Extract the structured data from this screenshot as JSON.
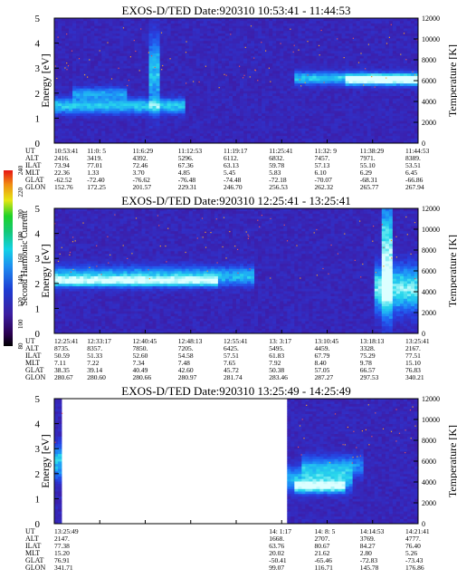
{
  "figure": {
    "colorbar": {
      "label": "Second Harmonic Current",
      "ticks": [
        "80",
        "100",
        "120",
        "140",
        "160",
        "180",
        "200",
        "220",
        "240"
      ]
    },
    "ylabel_left": "Energy [eV]",
    "ylabel_right": "Temperature [K]",
    "row_labels": [
      "UT",
      "ALT",
      "ILAT",
      "MLT",
      "GLAT",
      "GLON"
    ]
  },
  "chart_data": [
    {
      "type": "heatmap",
      "title": "EXOS-D/TED  Date:920310  10:53:41 - 11:44:53",
      "xlabel": "",
      "ylabel": "Energy [eV]",
      "ylabel_right": "Temperature [K]",
      "ylim": [
        0,
        5
      ],
      "ylim_right": [
        0,
        12000
      ],
      "yticks": [
        "0",
        "1",
        "2",
        "3",
        "4",
        "5"
      ],
      "yticks_right": [
        "0",
        "2000",
        "4000",
        "6000",
        "8000",
        "10000",
        "12000"
      ],
      "data_coverage": [
        [
          0.0,
          1.0
        ]
      ],
      "bands": [
        {
          "x0": 0.0,
          "x1": 0.36,
          "center": 1.5,
          "width": 0.55,
          "level": 0.55
        },
        {
          "x0": 0.05,
          "x1": 0.2,
          "center": 2.0,
          "width": 0.45,
          "level": 0.4
        },
        {
          "x0": 0.26,
          "x1": 0.29,
          "center": 2.8,
          "width": 2.6,
          "level": 0.5
        },
        {
          "x0": 0.66,
          "x1": 1.0,
          "center": 2.6,
          "width": 0.45,
          "level": 0.55
        },
        {
          "x0": 0.8,
          "x1": 1.0,
          "center": 2.55,
          "width": 0.35,
          "level": 0.75
        }
      ],
      "ephemeris": {
        "UT": [
          "10:53:41",
          "11:0: 5",
          "11:6:29",
          "11:12:53",
          "11:19:17",
          "11:25:41",
          "11:32: 9",
          "11:38:29",
          "11:44:53"
        ],
        "ALT": [
          "2416.",
          "3419.",
          "4392.",
          "5296.",
          "6112.",
          "6832.",
          "7457.",
          "7971.",
          "8389."
        ],
        "ILAT": [
          "73.94",
          "77.01",
          "72.46",
          "67.36",
          "63.13",
          "59.78",
          "57.13",
          "55.10",
          "53.51"
        ],
        "MLT": [
          "22.36",
          "1.33",
          "3.70",
          "4.85",
          "5.45",
          "5.83",
          "6.10",
          "6.29",
          "6.45"
        ],
        "GLAT": [
          "-62.52",
          "-72.40",
          "-76.62",
          "-76.48",
          "-74.48",
          "-72.18",
          "-70.07",
          "-68.31",
          "-66.86"
        ],
        "GLON": [
          "152.76",
          "172.25",
          "201.57",
          "229.31",
          "246.70",
          "256.53",
          "262.32",
          "265.77",
          "267.94"
        ]
      }
    },
    {
      "type": "heatmap",
      "title": "EXOS-D/TED  Date:920310  12:25:41 - 13:25:41",
      "xlabel": "",
      "ylabel": "Energy [eV]",
      "ylabel_right": "Temperature [K]",
      "ylim": [
        0,
        5
      ],
      "ylim_right": [
        0,
        12000
      ],
      "yticks": [
        "0",
        "1",
        "2",
        "3",
        "4",
        "5"
      ],
      "yticks_right": [
        "0",
        "2000",
        "4000",
        "6000",
        "8000",
        "10000",
        "12000"
      ],
      "data_coverage": [
        [
          0.0,
          1.0
        ]
      ],
      "bands": [
        {
          "x0": 0.0,
          "x1": 0.55,
          "center": 2.3,
          "width": 0.7,
          "level": 0.5
        },
        {
          "x0": 0.0,
          "x1": 0.45,
          "center": 2.1,
          "width": 0.35,
          "level": 0.65
        },
        {
          "x0": 0.88,
          "x1": 1.0,
          "center": 1.8,
          "width": 1.6,
          "level": 0.7
        },
        {
          "x0": 0.9,
          "x1": 0.93,
          "center": 3.0,
          "width": 4.0,
          "level": 0.8
        }
      ],
      "ephemeris": {
        "UT": [
          "12:25:41",
          "12:33:17",
          "12:40:45",
          "12:48:13",
          "12:55:41",
          "13: 3:17",
          "13:10:45",
          "13:18:13",
          "13:25:41"
        ],
        "ALT": [
          "8735.",
          "8357.",
          "7850.",
          "7205.",
          "6425.",
          "5495.",
          "4459.",
          "3328.",
          "2167."
        ],
        "ILAT": [
          "50.59",
          "51.33",
          "52.60",
          "54.58",
          "57.51",
          "61.83",
          "67.79",
          "75.29",
          "77.51"
        ],
        "MLT": [
          "7.11",
          "7.22",
          "7.34",
          "7.48",
          "7.65",
          "7.92",
          "8.40",
          "9.78",
          "15.10"
        ],
        "GLAT": [
          "38.35",
          "39.14",
          "40.49",
          "42.60",
          "45.72",
          "50.38",
          "57.05",
          "66.57",
          "76.83"
        ],
        "GLON": [
          "280.67",
          "280.60",
          "280.66",
          "280.97",
          "281.74",
          "283.46",
          "287.27",
          "297.53",
          "340.21"
        ]
      }
    },
    {
      "type": "heatmap",
      "title": "EXOS-D/TED  Date:920310  13:25:49 - 14:25:49",
      "xlabel": "",
      "ylabel": "Energy [eV]",
      "ylabel_right": "Temperature [K]",
      "ylim": [
        0,
        5
      ],
      "ylim_right": [
        0,
        12000
      ],
      "yticks": [
        "0",
        "1",
        "2",
        "3",
        "4",
        "5"
      ],
      "yticks_right": [
        "0",
        "2000",
        "4000",
        "6000",
        "8000",
        "10000",
        "12000"
      ],
      "data_coverage": [
        [
          0.0,
          0.02
        ],
        [
          0.645,
          1.0
        ]
      ],
      "bands": [
        {
          "x0": 0.0,
          "x1": 0.02,
          "center": 2.5,
          "width": 1.2,
          "level": 0.55
        },
        {
          "x0": 0.645,
          "x1": 0.82,
          "center": 1.8,
          "width": 0.9,
          "level": 0.45
        },
        {
          "x0": 0.66,
          "x1": 0.8,
          "center": 1.5,
          "width": 0.45,
          "level": 0.75
        },
        {
          "x0": 0.68,
          "x1": 0.85,
          "center": 2.3,
          "width": 0.8,
          "level": 0.35
        }
      ],
      "ephemeris": {
        "UT": [
          "13:25:49",
          "",
          "",
          "",
          "",
          "14: 1:17",
          "14: 8: 5",
          "14:14:53",
          "14:21:41"
        ],
        "ALT": [
          "2147.",
          "",
          "",
          "",
          "",
          "1668.",
          "2707.",
          "3769.",
          "4777."
        ],
        "ILAT": [
          "77.38",
          "",
          "",
          "",
          "",
          "63.76",
          "80.67",
          "84.27",
          "76.40"
        ],
        "MLT": [
          "15.20",
          "",
          "",
          "",
          "",
          "20.02",
          "21.62",
          "2.80",
          "5.26"
        ],
        "GLAT": [
          "76.91",
          "",
          "",
          "",
          "",
          "-50.41",
          "-65.46",
          "-72.83",
          "-73.43"
        ],
        "GLON": [
          "341.71",
          "",
          "",
          "",
          "",
          "99.07",
          "116.71",
          "145.78",
          "176.86"
        ]
      }
    }
  ]
}
